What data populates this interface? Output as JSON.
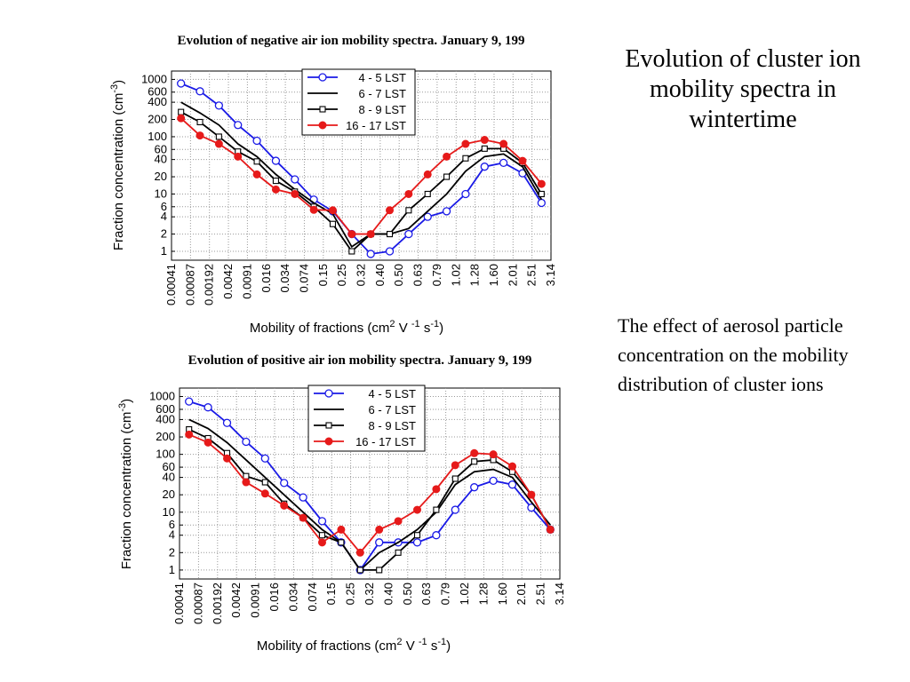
{
  "slide": {
    "title": "Evolution of cluster ion mobility spectra in wintertime",
    "body": "The effect of aerosol particle concentration on the mobility distribution of cluster ions"
  },
  "chart_data": [
    {
      "type": "line",
      "title": "Evolution of negative air ion mobility spectra. January 9, 199",
      "y_label": [
        "Fraction concentration  (cm",
        "-3",
        ")"
      ],
      "x_label": [
        "Mobility of fractions  (cm",
        "2",
        " V ",
        "-1",
        " s",
        "-1",
        ")"
      ],
      "bin_labels": [
        "0.00041",
        "0.00087",
        "0.00192",
        "0.0042",
        "0.0091",
        "0.016",
        "0.034",
        "0.074",
        "0.15",
        "0.25",
        "0.32",
        "0.40",
        "0.50",
        "0.63",
        "0.79",
        "1.02",
        "1.28",
        "1.60",
        "2.01",
        "2.51",
        "3.14"
      ],
      "log_y": true,
      "grid": true,
      "legend": "top",
      "ylim": [
        0.7,
        1400
      ],
      "yticks": [
        1,
        2,
        4,
        6,
        10,
        20,
        40,
        60,
        100,
        200,
        400,
        600,
        1000
      ],
      "series": [
        {
          "name": "4 - 5 LST",
          "color": "#1a1ae6",
          "marker": "open-circle",
          "values": [
            850,
            620,
            350,
            160,
            85,
            38,
            18,
            8,
            5,
            2,
            0.9,
            1,
            2,
            4,
            5,
            10,
            30,
            35,
            23,
            7
          ]
        },
        {
          "name": "6 - 7 LST",
          "color": "#000000",
          "marker": "none",
          "values": [
            400,
            260,
            160,
            75,
            45,
            22,
            12,
            7,
            4.5,
            1.2,
            2,
            2,
            2.5,
            5,
            10,
            25,
            45,
            50,
            30,
            8
          ]
        },
        {
          "name": "8 - 9 LST",
          "color": "#000000",
          "marker": "open-square",
          "values": [
            270,
            180,
            100,
            55,
            37,
            17,
            11,
            6,
            3,
            1,
            2,
            2,
            5.2,
            10,
            20,
            42,
            62,
            62,
            35,
            10
          ]
        },
        {
          "name": "16 - 17 LST",
          "color": "#e61a1a",
          "marker": "filled-circle",
          "values": [
            210,
            105,
            75,
            45,
            22,
            12,
            10,
            5.3,
            5.2,
            2,
            2,
            5.2,
            10,
            22,
            45,
            75,
            88,
            75,
            38,
            15
          ]
        }
      ]
    },
    {
      "type": "line",
      "title": "Evolution of positive air ion mobility spectra. January 9, 199",
      "y_label": [
        "Fraction concentration  (cm",
        "-3",
        ")"
      ],
      "x_label": [
        "Mobility of fractions  (cm",
        "2",
        " V ",
        "-1",
        " s",
        "-1",
        ")"
      ],
      "bin_labels": [
        "0.00041",
        "0.00087",
        "0.00192",
        "0.0042",
        "0.0091",
        "0.016",
        "0.034",
        "0.074",
        "0.15",
        "0.25",
        "0.32",
        "0.40",
        "0.50",
        "0.63",
        "0.79",
        "1.02",
        "1.28",
        "1.60",
        "2.01",
        "2.51",
        "3.14"
      ],
      "log_y": true,
      "grid": true,
      "legend": "top",
      "ylim": [
        0.7,
        1400
      ],
      "yticks": [
        1,
        2,
        4,
        6,
        10,
        20,
        40,
        60,
        100,
        200,
        400,
        600,
        1000
      ],
      "series": [
        {
          "name": "4 - 5 LST",
          "color": "#1a1ae6",
          "marker": "open-circle",
          "values": [
            820,
            650,
            350,
            165,
            85,
            32,
            18,
            7,
            3,
            1,
            3,
            3,
            3,
            4,
            11,
            27,
            35,
            30,
            12,
            5
          ]
        },
        {
          "name": "6 - 7 LST",
          "color": "#000000",
          "marker": "none",
          "values": [
            400,
            280,
            160,
            80,
            40,
            20,
            10,
            5,
            3,
            1,
            2,
            3,
            5,
            10,
            30,
            50,
            55,
            40,
            15,
            6
          ]
        },
        {
          "name": "8 - 9 LST",
          "color": "#000000",
          "marker": "open-square",
          "values": [
            270,
            190,
            105,
            42,
            33,
            14,
            8,
            4,
            3,
            1,
            1,
            2,
            4,
            11,
            38,
            75,
            80,
            50,
            20,
            5
          ]
        },
        {
          "name": "16 - 17 LST",
          "color": "#e61a1a",
          "marker": "filled-circle",
          "values": [
            220,
            160,
            85,
            33,
            21,
            13,
            8,
            3,
            5,
            2,
            5,
            7,
            11,
            25,
            65,
            105,
            100,
            62,
            20,
            5
          ]
        }
      ]
    }
  ]
}
